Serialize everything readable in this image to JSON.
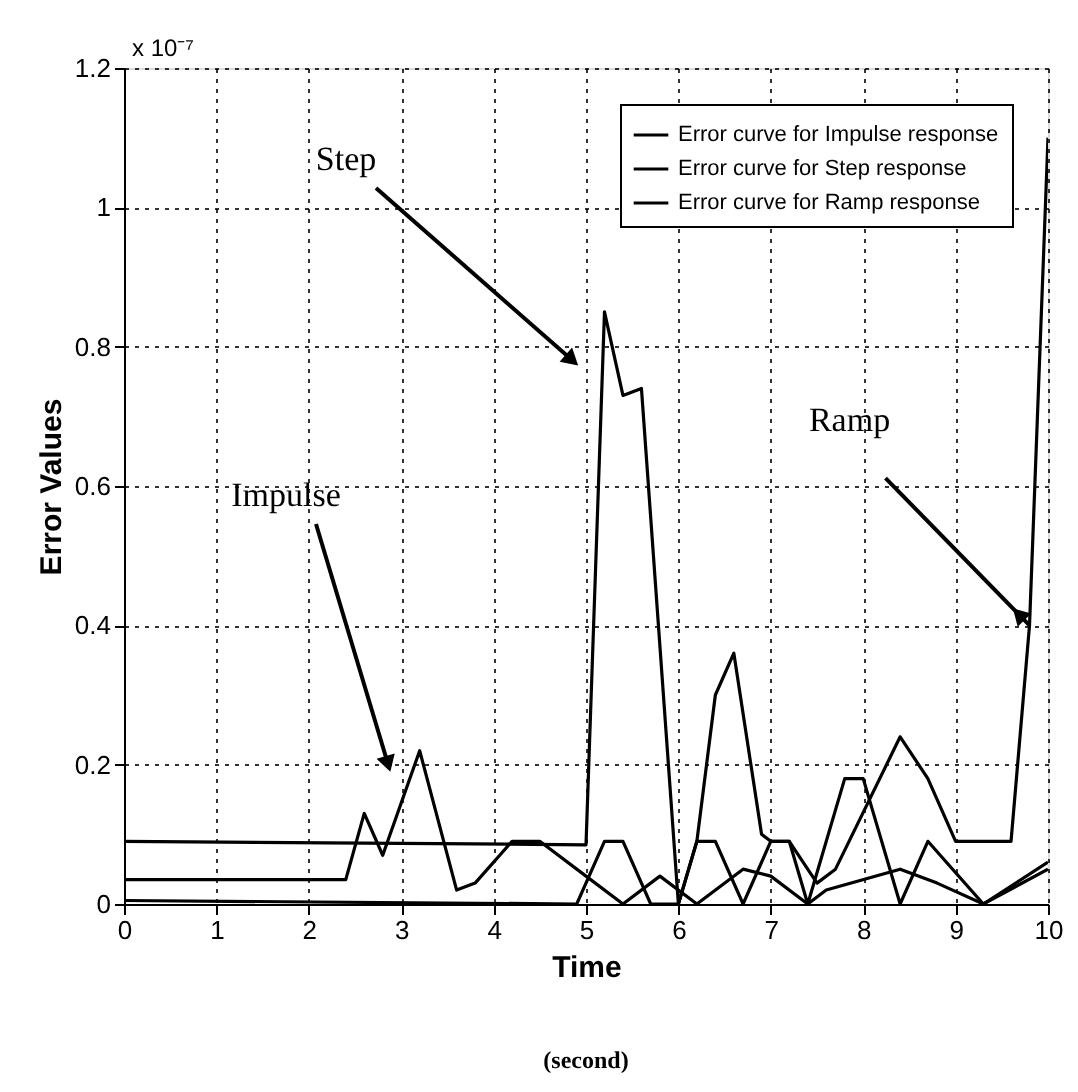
{
  "chart_data": {
    "type": "line",
    "xlabel": "Time",
    "ylabel": "Error Values",
    "xlim": [
      0,
      10
    ],
    "xticks": [
      0,
      1,
      2,
      3,
      4,
      5,
      6,
      7,
      8,
      9,
      10
    ],
    "ylim": [
      0,
      1.2
    ],
    "yticks": [
      0,
      0.2,
      0.4,
      0.6,
      0.8,
      1,
      1.2
    ],
    "grid": true,
    "legend": "top right",
    "line_style": "solid",
    "series": [
      {
        "name": "Error curve for Impulse response",
        "color": "#000000",
        "x": [
          0,
          2.4,
          2.6,
          2.8,
          3.2,
          3.6,
          3.8,
          4.2,
          4.5,
          5.0,
          5.4,
          5.8,
          6.2,
          6.7,
          7.0,
          7.4,
          7.6,
          8.4,
          8.8,
          9.3,
          10
        ],
        "values": [
          0.035,
          0.035,
          0.13,
          0.07,
          0.22,
          0.02,
          0.03,
          0.09,
          0.09,
          0.04,
          0.0,
          0.04,
          0.0,
          0.05,
          0.04,
          0.0,
          0.02,
          0.05,
          0.03,
          0.0,
          0.06
        ]
      },
      {
        "name": "Error curve for Step response",
        "color": "#000000",
        "x": [
          0,
          5.0,
          5.2,
          5.4,
          5.6,
          6.0,
          6.2,
          6.4,
          6.6,
          6.9,
          7.0,
          7.2,
          7.4,
          7.8,
          8.0,
          8.4,
          8.7,
          9.3,
          10
        ],
        "values": [
          0.09,
          0.085,
          0.85,
          0.73,
          0.74,
          0.0,
          0.09,
          0.3,
          0.36,
          0.1,
          0.09,
          0.09,
          0.0,
          0.18,
          0.18,
          0.0,
          0.09,
          0.0,
          0.05
        ]
      },
      {
        "name": "Error curve for Ramp response",
        "color": "#000000",
        "x": [
          0,
          4.9,
          5.2,
          5.4,
          5.7,
          6.0,
          6.2,
          6.4,
          6.7,
          7.0,
          7.2,
          7.5,
          7.7,
          8.4,
          8.7,
          9.0,
          9.6,
          9.8,
          10
        ],
        "values": [
          0.005,
          0.0,
          0.09,
          0.09,
          0.0,
          0.0,
          0.09,
          0.09,
          0.0,
          0.09,
          0.09,
          0.03,
          0.05,
          0.24,
          0.18,
          0.09,
          0.09,
          0.4,
          1.1
        ]
      }
    ],
    "annotations": [
      "x 10⁻⁷",
      "Step",
      "Impulse",
      {
        "text": "Ramp",
        "x": 9.8,
        "y": 0.4
      },
      "(second)"
    ]
  }
}
